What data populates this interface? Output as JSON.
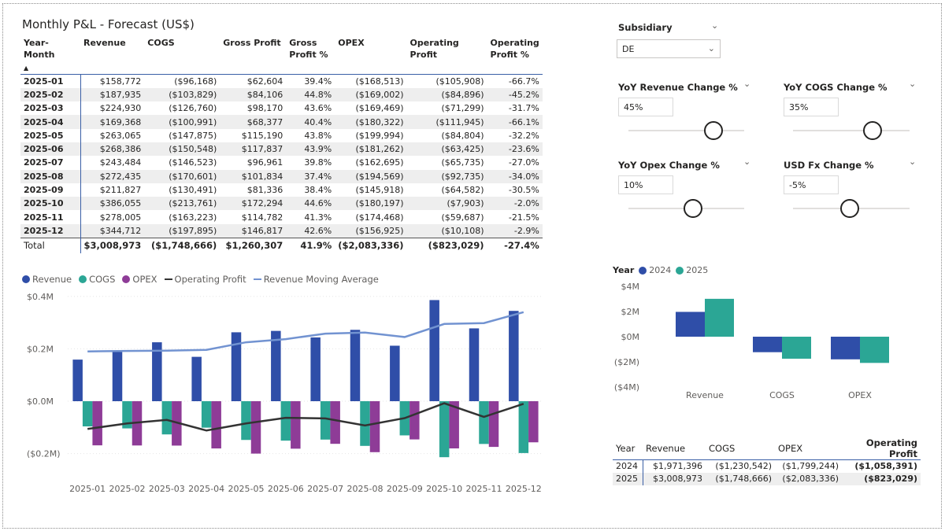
{
  "pl_table": {
    "title": "Monthly P&L - Forecast (US$)",
    "sort_icon": "sort-ascending-icon",
    "headers": [
      "Year-Month",
      "Revenue",
      "COGS",
      "Gross Profit",
      "Gross Profit %",
      "OPEX",
      "Operating Profit",
      "Operating Profit %"
    ],
    "rows": [
      [
        "2025-01",
        "$158,772",
        "($96,168)",
        "$62,604",
        "39.4%",
        "($168,513)",
        "($105,908)",
        "-66.7%"
      ],
      [
        "2025-02",
        "$187,935",
        "($103,829)",
        "$84,106",
        "44.8%",
        "($169,002)",
        "($84,896)",
        "-45.2%"
      ],
      [
        "2025-03",
        "$224,930",
        "($126,760)",
        "$98,170",
        "43.6%",
        "($169,469)",
        "($71,299)",
        "-31.7%"
      ],
      [
        "2025-04",
        "$169,368",
        "($100,991)",
        "$68,377",
        "40.4%",
        "($180,322)",
        "($111,945)",
        "-66.1%"
      ],
      [
        "2025-05",
        "$263,065",
        "($147,875)",
        "$115,190",
        "43.8%",
        "($199,994)",
        "($84,804)",
        "-32.2%"
      ],
      [
        "2025-06",
        "$268,386",
        "($150,548)",
        "$117,837",
        "43.9%",
        "($181,262)",
        "($63,425)",
        "-23.6%"
      ],
      [
        "2025-07",
        "$243,484",
        "($146,523)",
        "$96,961",
        "39.8%",
        "($162,695)",
        "($65,735)",
        "-27.0%"
      ],
      [
        "2025-08",
        "$272,435",
        "($170,601)",
        "$101,834",
        "37.4%",
        "($194,569)",
        "($92,735)",
        "-34.0%"
      ],
      [
        "2025-09",
        "$211,827",
        "($130,491)",
        "$81,336",
        "38.4%",
        "($145,918)",
        "($64,582)",
        "-30.5%"
      ],
      [
        "2025-10",
        "$386,055",
        "($213,761)",
        "$172,294",
        "44.6%",
        "($180,197)",
        "($7,903)",
        "-2.0%"
      ],
      [
        "2025-11",
        "$278,005",
        "($163,223)",
        "$114,782",
        "41.3%",
        "($174,468)",
        "($59,687)",
        "-21.5%"
      ],
      [
        "2025-12",
        "$344,712",
        "($197,895)",
        "$146,817",
        "42.6%",
        "($156,925)",
        "($10,108)",
        "-2.9%"
      ]
    ],
    "total": [
      "Total",
      "$3,008,973",
      "($1,748,666)",
      "$1,260,307",
      "41.9%",
      "($2,083,336)",
      "($823,029)",
      "-27.4%"
    ]
  },
  "colors": {
    "revenue": "#2f4ea8",
    "cogs": "#2ba695",
    "opex": "#8e3c97",
    "operating_profit": "#333333",
    "moving_average": "#7293d1",
    "y2024": "#2f4ea8",
    "y2025": "#2ba695"
  },
  "chart_data": [
    {
      "type": "bar",
      "legend": [
        "Revenue",
        "COGS",
        "OPEX",
        "Operating Profit",
        "Revenue Moving Average"
      ],
      "legend_placement": "top-left",
      "categories": [
        "2025-01",
        "2025-02",
        "2025-03",
        "2025-04",
        "2025-05",
        "2025-06",
        "2025-07",
        "2025-08",
        "2025-09",
        "2025-10",
        "2025-11",
        "2025-12"
      ],
      "series": [
        {
          "name": "Revenue",
          "kind": "bar",
          "values": [
            158772,
            187935,
            224930,
            169368,
            263065,
            268386,
            243484,
            272435,
            211827,
            386055,
            278005,
            344712
          ]
        },
        {
          "name": "COGS",
          "kind": "bar",
          "values": [
            -96168,
            -103829,
            -126760,
            -100991,
            -147875,
            -150548,
            -146523,
            -170601,
            -130491,
            -213761,
            -163223,
            -197895
          ]
        },
        {
          "name": "OPEX",
          "kind": "bar",
          "values": [
            -168513,
            -169002,
            -169469,
            -180322,
            -199994,
            -181262,
            -162695,
            -194569,
            -145918,
            -180197,
            -174468,
            -156925
          ]
        },
        {
          "name": "Operating Profit",
          "kind": "line",
          "values": [
            -105908,
            -84896,
            -71299,
            -111945,
            -84804,
            -63425,
            -65735,
            -92735,
            -64582,
            -7903,
            -59687,
            -10108
          ]
        },
        {
          "name": "Revenue Moving Average",
          "kind": "line",
          "values": [
            190000,
            192000,
            193000,
            196000,
            225000,
            237000,
            258000,
            262000,
            245000,
            295000,
            298000,
            340000
          ]
        }
      ],
      "yticks": [
        "$0.4M",
        "$0.2M",
        "$0.0M",
        "($0.2M)"
      ],
      "ylim": [
        -0.22,
        0.42
      ],
      "grid": true
    },
    {
      "type": "bar",
      "legend_title": "Year",
      "legend": [
        "2024",
        "2025"
      ],
      "legend_placement": "top-left",
      "categories": [
        "Revenue",
        "COGS",
        "OPEX"
      ],
      "series": [
        {
          "name": "2024",
          "values": [
            1971396,
            -1230542,
            -1799244
          ]
        },
        {
          "name": "2025",
          "values": [
            3008973,
            -1748666,
            -2083336
          ]
        }
      ],
      "yticks": [
        "$4M",
        "$2M",
        "$0M",
        "($2M)",
        "($4M)"
      ],
      "ylim": [
        -4,
        4
      ]
    }
  ],
  "slicers": {
    "subsidiary": {
      "label": "Subsidiary",
      "value": "DE"
    },
    "yoy_revenue": {
      "label": "YoY Revenue Change %",
      "value": "45%",
      "level": 0.7
    },
    "yoy_cogs": {
      "label": "YoY COGS Change %",
      "value": "35%",
      "level": 0.67
    },
    "yoy_opex": {
      "label": "YoY Opex Change %",
      "value": "10%",
      "level": 0.55
    },
    "usd_fx": {
      "label": "USD Fx Change %",
      "value": "-5%",
      "level": 0.48
    }
  },
  "summary_table": {
    "headers": [
      "Year",
      "Revenue",
      "COGS",
      "OPEX",
      "Operating Profit"
    ],
    "rows": [
      [
        "2024",
        "$1,971,396",
        "($1,230,542)",
        "($1,799,244)",
        "($1,058,391)"
      ],
      [
        "2025",
        "$3,008,973",
        "($1,748,666)",
        "($2,083,336)",
        "($823,029)"
      ]
    ]
  }
}
